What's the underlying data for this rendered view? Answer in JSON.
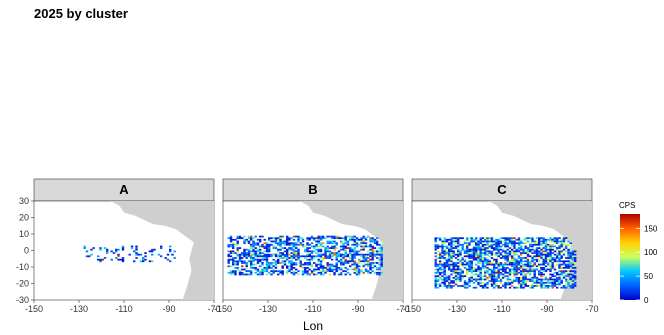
{
  "title": "2025 by cluster",
  "chart_data": {
    "type": "heatmap",
    "title": "2025 by cluster",
    "xlabel": "Lon",
    "ylabel": "",
    "xlim": [
      -150,
      -70
    ],
    "ylim": [
      -30,
      30
    ],
    "x_ticks": [
      -150,
      -130,
      -110,
      -90,
      -70
    ],
    "x_tick_labels": [
      "-150",
      "-130",
      "-110",
      "-90",
      "-70"
    ],
    "y_ticks": [
      -30,
      -20,
      -10,
      0,
      10,
      20,
      30
    ],
    "y_tick_labels": [
      "-30",
      "-20",
      "-10",
      "0",
      "10",
      "20",
      "30"
    ],
    "facets": [
      "A",
      "B",
      "C"
    ],
    "legend": {
      "title": "CPS",
      "breaks": [
        0,
        50,
        100,
        150
      ],
      "break_labels": [
        "0",
        "50",
        "100",
        "150"
      ],
      "range": [
        0,
        180
      ],
      "position": "right",
      "colors": [
        "#0000c8",
        "#0060ff",
        "#00c8ff",
        "#c8ff60",
        "#ffd000",
        "#ff6000",
        "#b00000"
      ]
    },
    "land_color": "#cfcfcf",
    "strip_color": "#d9d9d9",
    "grid": false
  },
  "icons": {}
}
